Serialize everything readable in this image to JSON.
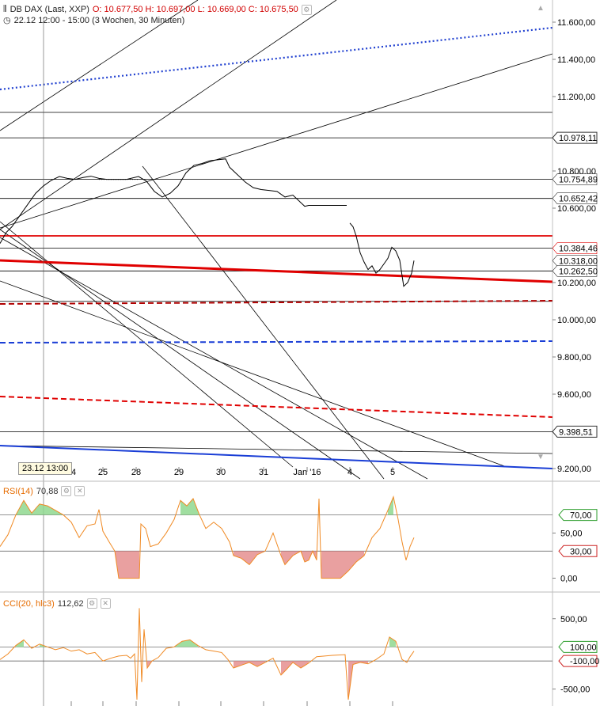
{
  "header": {
    "instrument": "DB DAX (Last, XXP)",
    "ohlc": "O: 10.677,50  H: 10.697,00  L: 10.669,00  C: 10.675,50",
    "period": "22.12 12:00 - 15:00 (3 Wochen, 30 Minuten)"
  },
  "tooltip": "23.12 13:00",
  "rsi_header": {
    "name": "RSI(14)",
    "value": "70,88"
  },
  "cci_header": {
    "name": "CCI(20, hlc3)",
    "value": "112,62"
  },
  "colors": {
    "price": "#000000",
    "rsi": "#f08a24",
    "overbought_fill": "#8fd88f",
    "oversold_fill": "#e58f8f",
    "red_line": "#e00000",
    "dark_red_dash": "#b00000",
    "blue_dash": "#1a3ed6",
    "blue_dot": "#2040d0",
    "blue_solid": "#1a3ed6"
  },
  "chart_data": [
    {
      "type": "line",
      "title": "DB DAX (Last, XXP)",
      "x_tick_labels": [
        "24",
        "25",
        "28",
        "29",
        "30",
        "31",
        "Jan '16",
        "4",
        "5"
      ],
      "y_ticks": [
        11600,
        11400,
        11200,
        11000,
        10800,
        10600,
        10400,
        10200,
        10000,
        9800,
        9600,
        9400,
        9200
      ],
      "y_tick_labels": [
        "11.600,00",
        "11.400,00",
        "11.200,00",
        "10.978,11",
        "10.800,00",
        "10.600,00",
        "10.384,46",
        "10.200,00",
        "10.000,00",
        "9.800,00",
        "9.600,00",
        "9.398,51",
        "9.200,00"
      ],
      "ylim": [
        9190,
        11770
      ],
      "price_tags": [
        {
          "value": 10978.11,
          "label": "10.978,11"
        },
        {
          "value": 10754.89,
          "label": "10.754,89"
        },
        {
          "value": 10652.42,
          "label": "10.652,42"
        },
        {
          "value": 10384.46,
          "label": "10.384,46"
        },
        {
          "value": 10318.0,
          "label": "10.318,00"
        },
        {
          "value": 10262.5,
          "label": "10.262,50"
        },
        {
          "value": 9398.51,
          "label": "9.398,51"
        }
      ],
      "horizontal_levels": [
        11115,
        10978.11,
        10754.89,
        10652.42,
        10384.46,
        10262.5,
        10099,
        9398.51
      ],
      "series": [
        {
          "values": [
            [
              0,
              10410
            ],
            [
              8,
              10470
            ],
            [
              15,
              10500
            ],
            [
              25,
              10560
            ],
            [
              35,
              10620
            ],
            [
              45,
              10680
            ],
            [
              55,
              10720
            ],
            [
              65,
              10750
            ],
            [
              75,
              10770
            ],
            [
              85,
              10760
            ],
            [
              95,
              10755
            ],
            [
              105,
              10765
            ],
            [
              115,
              10772
            ],
            [
              125,
              10760
            ],
            [
              135,
              10755
            ],
            [
              145,
              10755
            ],
            [
              160,
              10755
            ],
            [
              175,
              10770
            ],
            [
              185,
              10745
            ],
            [
              195,
              10690
            ],
            [
              205,
              10660
            ],
            [
              215,
              10680
            ],
            [
              225,
              10720
            ],
            [
              235,
              10790
            ],
            [
              245,
              10830
            ],
            [
              255,
              10840
            ],
            [
              265,
              10855
            ],
            [
              275,
              10860
            ],
            [
              285,
              10865
            ],
            [
              290,
              10820
            ],
            [
              300,
              10780
            ],
            [
              310,
              10740
            ],
            [
              320,
              10710
            ],
            [
              330,
              10700
            ],
            [
              340,
              10695
            ],
            [
              350,
              10690
            ],
            [
              360,
              10660
            ],
            [
              370,
              10670
            ],
            [
              375,
              10650
            ],
            [
              380,
              10630
            ],
            [
              385,
              10610
            ],
            [
              390,
              10615
            ],
            [
              400,
              10615
            ],
            [
              410,
              10615
            ],
            [
              420,
              10615
            ],
            [
              438,
              10615
            ]
          ]
        },
        {
          "values": [
            [
              442,
              10520
            ],
            [
              446,
              10500
            ],
            [
              450,
              10450
            ],
            [
              455,
              10360
            ],
            [
              460,
              10310
            ],
            [
              465,
              10270
            ],
            [
              470,
              10290
            ],
            [
              475,
              10250
            ],
            [
              480,
              10270
            ],
            [
              485,
              10300
            ],
            [
              490,
              10330
            ],
            [
              495,
              10390
            ],
            [
              500,
              10370
            ],
            [
              505,
              10320
            ],
            [
              510,
              10180
            ],
            [
              515,
              10200
            ],
            [
              520,
              10250
            ],
            [
              523,
              10318
            ]
          ]
        }
      ]
    },
    {
      "type": "line",
      "title": "RSI(14)",
      "y_tick_labels": [
        "70,00",
        "50,00",
        "30,00",
        "0,00"
      ],
      "ylim": [
        -10,
        95
      ],
      "levels": [
        70,
        30
      ],
      "series": [
        {
          "values": [
            [
              0,
              35
            ],
            [
              10,
              48
            ],
            [
              20,
              70
            ],
            [
              30,
              86
            ],
            [
              40,
              72
            ],
            [
              50,
              82
            ],
            [
              60,
              80
            ],
            [
              70,
              75
            ],
            [
              80,
              70
            ],
            [
              90,
              62
            ],
            [
              100,
              45
            ],
            [
              110,
              58
            ],
            [
              120,
              60
            ],
            [
              125,
              76
            ],
            [
              130,
              52
            ],
            [
              138,
              40
            ],
            [
              145,
              30
            ],
            [
              150,
              0
            ],
            [
              176,
              0
            ],
            [
              178,
              60
            ],
            [
              184,
              55
            ],
            [
              190,
              35
            ],
            [
              200,
              38
            ],
            [
              210,
              50
            ],
            [
              220,
              65
            ],
            [
              228,
              86
            ],
            [
              236,
              80
            ],
            [
              244,
              88
            ],
            [
              252,
              70
            ],
            [
              260,
              55
            ],
            [
              270,
              62
            ],
            [
              280,
              55
            ],
            [
              290,
              40
            ],
            [
              295,
              25
            ],
            [
              305,
              22
            ],
            [
              315,
              15
            ],
            [
              325,
              26
            ],
            [
              335,
              30
            ],
            [
              345,
              50
            ],
            [
              355,
              25
            ],
            [
              360,
              15
            ],
            [
              370,
              25
            ],
            [
              380,
              30
            ],
            [
              385,
              18
            ],
            [
              390,
              20
            ],
            [
              395,
              30
            ],
            [
              400,
              20
            ],
            [
              403,
              88
            ],
            [
              406,
              0
            ],
            [
              430,
              0
            ],
            [
              440,
              8
            ],
            [
              450,
              18
            ],
            [
              460,
              25
            ],
            [
              470,
              45
            ],
            [
              480,
              55
            ],
            [
              490,
              75
            ],
            [
              497,
              90
            ],
            [
              503,
              65
            ],
            [
              508,
              40
            ],
            [
              513,
              20
            ],
            [
              518,
              35
            ],
            [
              523,
              45
            ]
          ]
        }
      ]
    },
    {
      "type": "line",
      "title": "CCI(20, hlc3)",
      "y_tick_labels": [
        "500,00",
        "100,00",
        "-100,00",
        "-500,00"
      ],
      "ylim": [
        -650,
        700
      ],
      "levels": [
        100,
        -100
      ],
      "series": [
        {
          "values": [
            [
              0,
              -80
            ],
            [
              10,
              0
            ],
            [
              20,
              120
            ],
            [
              30,
              200
            ],
            [
              40,
              80
            ],
            [
              50,
              140
            ],
            [
              60,
              100
            ],
            [
              70,
              60
            ],
            [
              80,
              90
            ],
            [
              90,
              40
            ],
            [
              100,
              60
            ],
            [
              110,
              0
            ],
            [
              120,
              20
            ],
            [
              130,
              -100
            ],
            [
              140,
              -60
            ],
            [
              150,
              -30
            ],
            [
              160,
              -20
            ],
            [
              165,
              -60
            ],
            [
              170,
              0
            ],
            [
              173,
              -650
            ],
            [
              176,
              650
            ],
            [
              179,
              -400
            ],
            [
              182,
              350
            ],
            [
              186,
              -200
            ],
            [
              192,
              -100
            ],
            [
              200,
              -50
            ],
            [
              210,
              80
            ],
            [
              220,
              100
            ],
            [
              230,
              180
            ],
            [
              240,
              200
            ],
            [
              250,
              120
            ],
            [
              260,
              60
            ],
            [
              270,
              40
            ],
            [
              280,
              20
            ],
            [
              288,
              -80
            ],
            [
              295,
              -200
            ],
            [
              305,
              -160
            ],
            [
              315,
              -120
            ],
            [
              325,
              -180
            ],
            [
              335,
              -120
            ],
            [
              345,
              -60
            ],
            [
              355,
              -300
            ],
            [
              362,
              -220
            ],
            [
              370,
              -120
            ],
            [
              380,
              -200
            ],
            [
              390,
              -130
            ],
            [
              400,
              -40
            ],
            [
              410,
              -30
            ],
            [
              420,
              -20
            ],
            [
              436,
              -10
            ],
            [
              440,
              -650
            ],
            [
              446,
              -150
            ],
            [
              455,
              -120
            ],
            [
              465,
              -140
            ],
            [
              475,
              -80
            ],
            [
              485,
              0
            ],
            [
              492,
              240
            ],
            [
              500,
              180
            ],
            [
              508,
              -80
            ],
            [
              514,
              -120
            ],
            [
              518,
              -40
            ],
            [
              523,
              40
            ]
          ]
        }
      ]
    }
  ]
}
